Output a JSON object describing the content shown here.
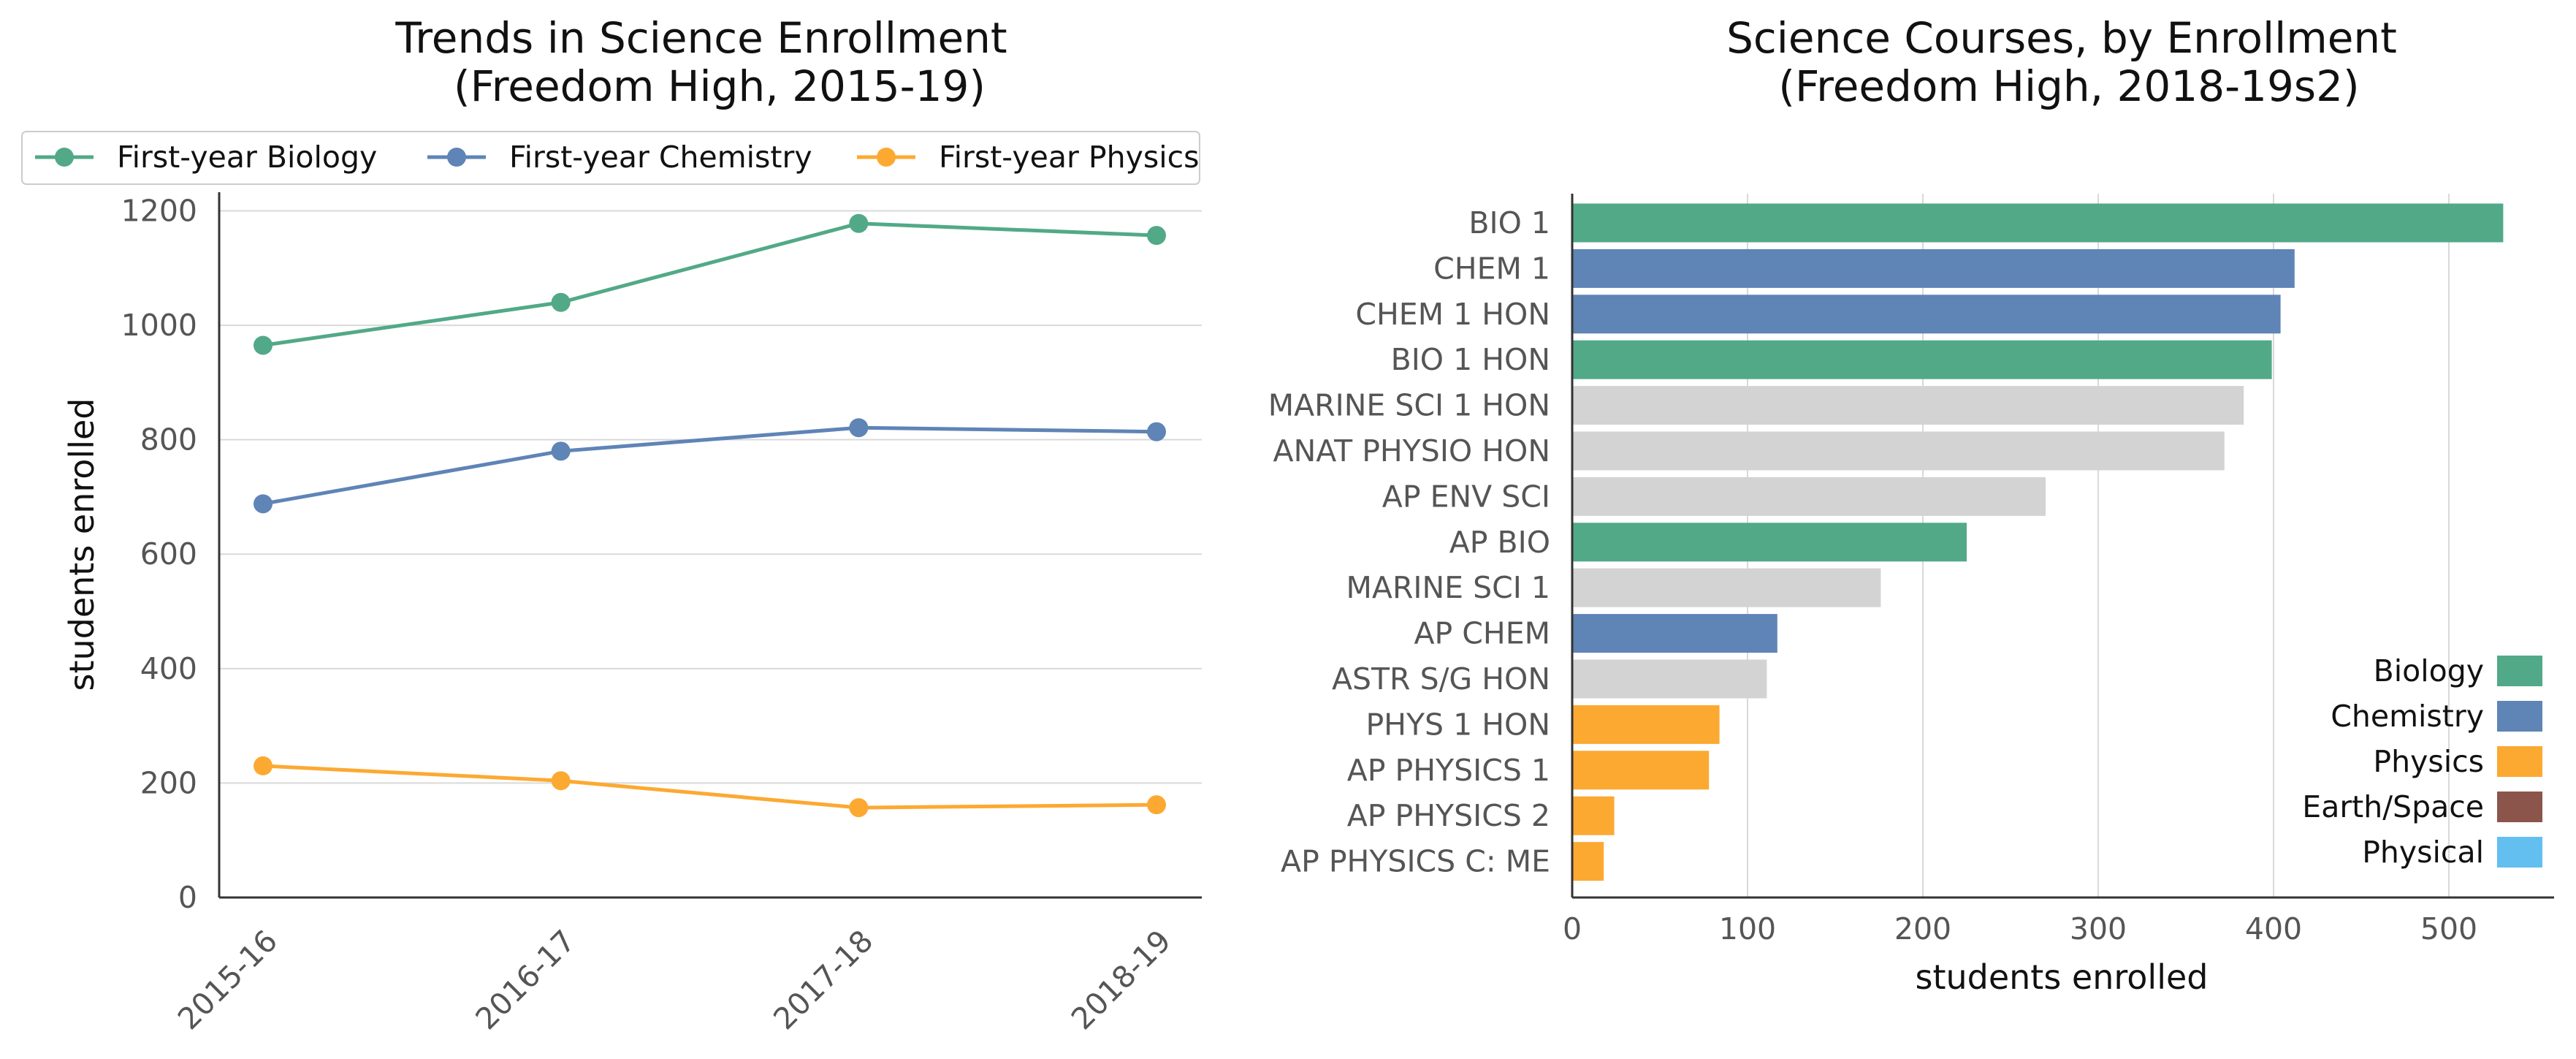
{
  "chart_data": [
    {
      "type": "line",
      "title_line1": "Trends in Science Enrollment",
      "title_line2": "(Freedom High, 2015-19)",
      "xlabel": "",
      "ylabel": "students enrolled",
      "categories": [
        "2015-16",
        "2016-17",
        "2017-18",
        "2018-19"
      ],
      "yticks": [
        "0",
        "200",
        "400",
        "600",
        "800",
        "1000",
        "1200"
      ],
      "ylim": [
        0,
        1230
      ],
      "grid": true,
      "legend_position": "top",
      "series": [
        {
          "name": "First-year Biology",
          "color": "#52a987",
          "values": [
            965,
            1040,
            1178,
            1157
          ]
        },
        {
          "name": "First-year Chemistry",
          "color": "#5f84b6",
          "values": [
            688,
            780,
            821,
            814
          ]
        },
        {
          "name": "First-year Physics",
          "color": "#fca932",
          "values": [
            230,
            204,
            157,
            162
          ]
        }
      ]
    },
    {
      "type": "bar",
      "orientation": "horizontal",
      "title_line1": "Science Courses, by Enrollment",
      "title_line2": "(Freedom High, 2018-19s2)",
      "xlabel": "students enrolled",
      "ylabel": "",
      "xticks": [
        "0",
        "100",
        "200",
        "300",
        "400",
        "500"
      ],
      "xlim": [
        0,
        560
      ],
      "grid": true,
      "legend_position": "lower right",
      "categories": [
        "BIO 1",
        "CHEM 1",
        "CHEM 1 HON",
        "BIO 1 HON",
        "MARINE SCI 1 HON",
        "ANAT PHYSIO HON",
        "AP ENV SCI",
        "AP BIO",
        "MARINE SCI 1",
        "AP CHEM",
        "ASTR S/G HON",
        "PHYS 1 HON",
        "AP PHYSICS 1",
        "AP PHYSICS 2",
        "AP PHYSICS C: ME"
      ],
      "values": [
        531,
        412,
        404,
        399,
        383,
        372,
        270,
        225,
        176,
        117,
        111,
        84,
        78,
        24,
        18
      ],
      "bar_groups": [
        "Biology",
        "Chemistry",
        "Chemistry",
        "Biology",
        "Other",
        "Other",
        "Other",
        "Biology",
        "Other",
        "Chemistry",
        "Other",
        "Physics",
        "Physics",
        "Physics",
        "Physics"
      ],
      "group_colors": {
        "Biology": "#52a987",
        "Chemistry": "#5f84b6",
        "Physics": "#fca932",
        "Earth/Space": "#8b554b",
        "Physical": "#63bff0",
        "Other": "#d3d3d3"
      },
      "legend": [
        {
          "name": "Biology",
          "color": "#52a987"
        },
        {
          "name": "Chemistry",
          "color": "#5f84b6"
        },
        {
          "name": "Physics",
          "color": "#fca932"
        },
        {
          "name": "Earth/Space",
          "color": "#8b554b"
        },
        {
          "name": "Physical",
          "color": "#63bff0"
        }
      ]
    }
  ]
}
